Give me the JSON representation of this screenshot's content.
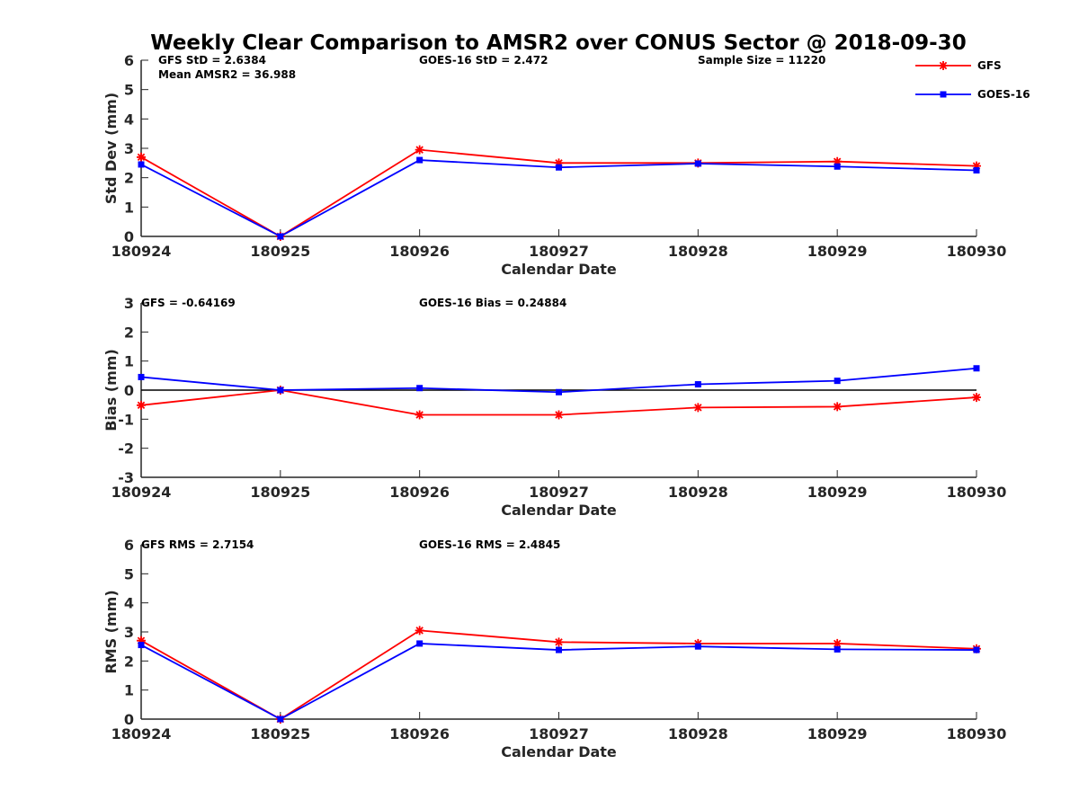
{
  "chart_data": [
    {
      "type": "line",
      "title": "Weekly Clear Comparison to AMSR2 over CONUS Sector @ 2018-09-30",
      "categories": [
        "180924",
        "180925",
        "180926",
        "180927",
        "180928",
        "180929",
        "180930"
      ],
      "xlabel": "Calendar Date",
      "ylabel": "Std Dev (mm)",
      "ylim": [
        0,
        6
      ],
      "yticks": [
        "0",
        "1",
        "2",
        "3",
        "4",
        "5",
        "6"
      ],
      "zero_line": false,
      "annotations": [
        "GFS StD = 2.6384",
        "Mean AMSR2 = 36.988",
        "GOES-16 StD = 2.472",
        "Sample Size = 11220"
      ],
      "series": [
        {
          "name": "GFS",
          "color": "#ff0000",
          "marker": "asterisk",
          "values": [
            2.7,
            0.0,
            2.95,
            2.5,
            2.5,
            2.55,
            2.4
          ]
        },
        {
          "name": "GOES-16",
          "color": "#0000ff",
          "marker": "square",
          "values": [
            2.45,
            0.0,
            2.6,
            2.35,
            2.48,
            2.38,
            2.25
          ]
        }
      ],
      "legend": {
        "position": "top-right",
        "entries": [
          "GFS",
          "GOES-16"
        ]
      }
    },
    {
      "type": "line",
      "categories": [
        "180924",
        "180925",
        "180926",
        "180927",
        "180928",
        "180929",
        "180930"
      ],
      "xlabel": "Calendar Date",
      "ylabel": "Bias (mm)",
      "ylim": [
        -3,
        3
      ],
      "yticks": [
        "-3",
        "-2",
        "-1",
        "0",
        "1",
        "2",
        "3"
      ],
      "zero_line": true,
      "annotations": [
        "GFS = -0.64169",
        "GOES-16 Bias  = 0.24884"
      ],
      "series": [
        {
          "name": "GFS",
          "color": "#ff0000",
          "marker": "asterisk",
          "values": [
            -0.52,
            0.0,
            -0.85,
            -0.85,
            -0.6,
            -0.57,
            -0.25
          ]
        },
        {
          "name": "GOES-16",
          "color": "#0000ff",
          "marker": "square",
          "values": [
            0.45,
            0.0,
            0.07,
            -0.07,
            0.2,
            0.32,
            0.75
          ]
        }
      ]
    },
    {
      "type": "line",
      "categories": [
        "180924",
        "180925",
        "180926",
        "180927",
        "180928",
        "180929",
        "180930"
      ],
      "xlabel": "Calendar Date",
      "ylabel": "RMS (mm)",
      "ylim": [
        0,
        6
      ],
      "yticks": [
        "0",
        "1",
        "2",
        "3",
        "4",
        "5",
        "6"
      ],
      "zero_line": false,
      "annotations": [
        "GFS RMS = 2.7154",
        "GOES-16 RMS = 2.4845"
      ],
      "series": [
        {
          "name": "GFS",
          "color": "#ff0000",
          "marker": "asterisk",
          "values": [
            2.7,
            0.0,
            3.05,
            2.65,
            2.6,
            2.6,
            2.42
          ]
        },
        {
          "name": "GOES-16",
          "color": "#0000ff",
          "marker": "square",
          "values": [
            2.55,
            0.0,
            2.6,
            2.38,
            2.5,
            2.4,
            2.38
          ]
        }
      ]
    }
  ]
}
